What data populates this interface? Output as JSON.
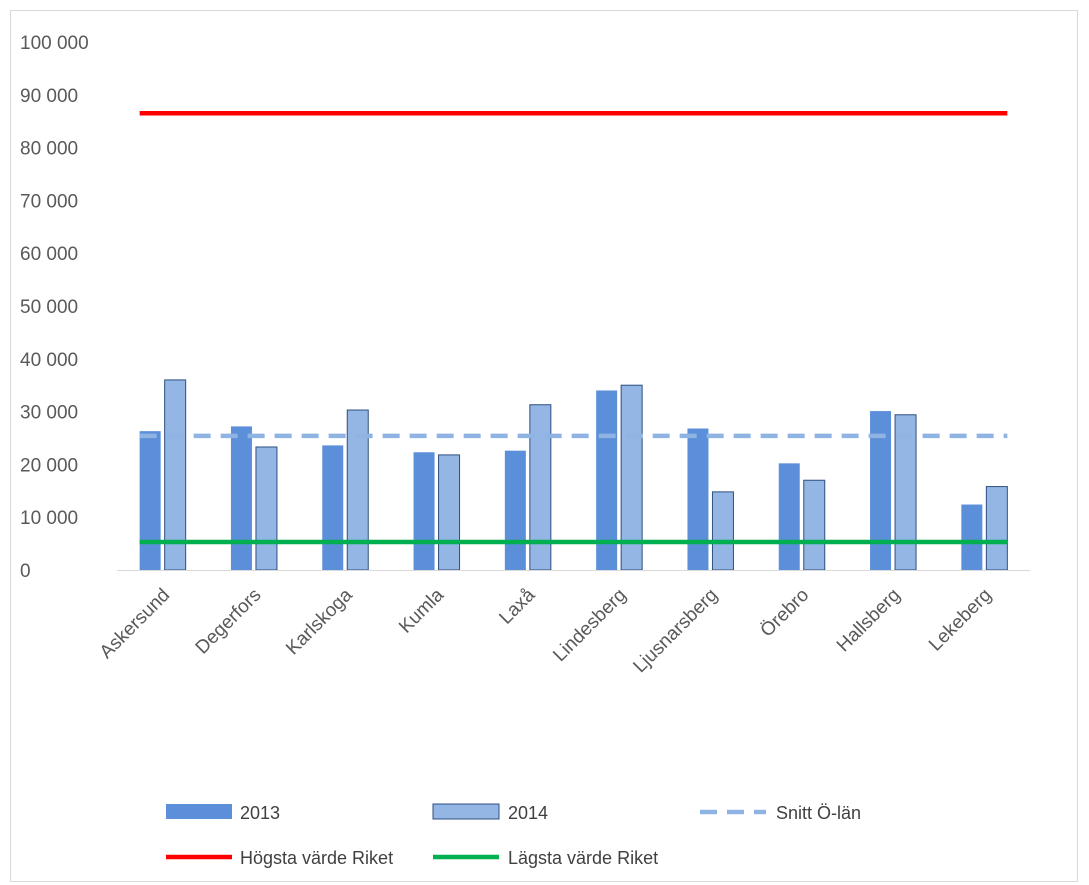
{
  "chart_data": {
    "type": "bar",
    "title": "",
    "xlabel": "",
    "ylabel": "",
    "ylim": [
      0,
      100000
    ],
    "yticks": [
      0,
      10000,
      20000,
      30000,
      40000,
      50000,
      60000,
      70000,
      80000,
      90000,
      100000
    ],
    "ytick_labels": [
      "0",
      "10 000",
      "20 000",
      "30 000",
      "40 000",
      "50 000",
      "60 000",
      "70 000",
      "80 000",
      "90 000",
      "100 000"
    ],
    "categories": [
      "Askersund",
      "Degerfors",
      "Karlskoga",
      "Kumla",
      "Laxå",
      "Lindesberg",
      "Ljusnarsberg",
      "Örebro",
      "Hallsberg",
      "Lekeberg"
    ],
    "series": [
      {
        "name": "2013",
        "type": "bar",
        "color": "#5b8fd9",
        "values": [
          26300,
          27200,
          23600,
          22300,
          22600,
          34000,
          26800,
          20200,
          30100,
          12400
        ]
      },
      {
        "name": "2014",
        "type": "bar",
        "color": "#93b6e5",
        "edge": "#2f4f7f",
        "values": [
          36000,
          23300,
          30300,
          21800,
          31300,
          35000,
          14800,
          17000,
          29400,
          15800
        ]
      },
      {
        "name": "Snitt Ö-län",
        "type": "line",
        "style": "dashed",
        "color": "#8fb3e3",
        "value": 25400
      },
      {
        "name": "Högsta värde Riket",
        "type": "line",
        "style": "solid",
        "color": "#ff0000",
        "value": 86500
      },
      {
        "name": "Lägsta värde Riket",
        "type": "line",
        "style": "solid",
        "color": "#00b050",
        "value": 5300
      }
    ],
    "grid": false,
    "legend_position": "bottom"
  }
}
